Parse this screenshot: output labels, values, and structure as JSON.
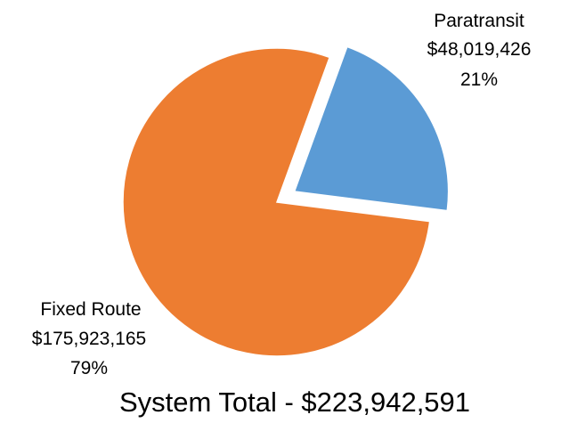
{
  "chart_data": {
    "type": "pie",
    "title": "System Total - $223,942,591",
    "slices": [
      {
        "label": "Paratransit",
        "value": 48019426,
        "value_label": "$48,019,426",
        "percent_label": "21%",
        "color": "#5B9BD5",
        "exploded": true
      },
      {
        "label": "Fixed Route",
        "value": 175923165,
        "value_label": "$175,923,165",
        "percent_label": "79%",
        "color": "#ED7D31",
        "exploded": false
      }
    ],
    "legend": "none",
    "data_labels": "outside"
  }
}
